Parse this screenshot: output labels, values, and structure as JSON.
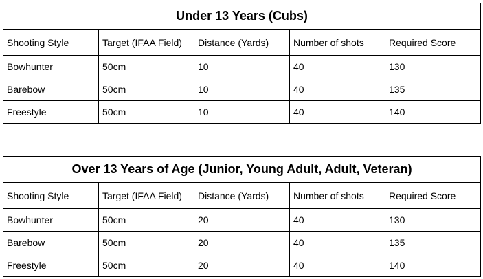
{
  "columns": [
    "Shooting Style",
    "Target (IFAA Field)",
    "Distance (Yards)",
    "Number of shots",
    "Required Score"
  ],
  "tables": [
    {
      "title": "Under 13 Years (Cubs)",
      "rows": [
        [
          "Bowhunter",
          "50cm",
          "10",
          "40",
          "130"
        ],
        [
          "Barebow",
          "50cm",
          "10",
          "40",
          "135"
        ],
        [
          "Freestyle",
          "50cm",
          "10",
          "40",
          "140"
        ]
      ]
    },
    {
      "title": "Over 13 Years of Age (Junior, Young Adult, Adult, Veteran)",
      "rows": [
        [
          "Bowhunter",
          "50cm",
          "20",
          "40",
          "130"
        ],
        [
          "Barebow",
          "50cm",
          "20",
          "40",
          "135"
        ],
        [
          "Freestyle",
          "50cm",
          "20",
          "40",
          "140"
        ]
      ]
    }
  ]
}
